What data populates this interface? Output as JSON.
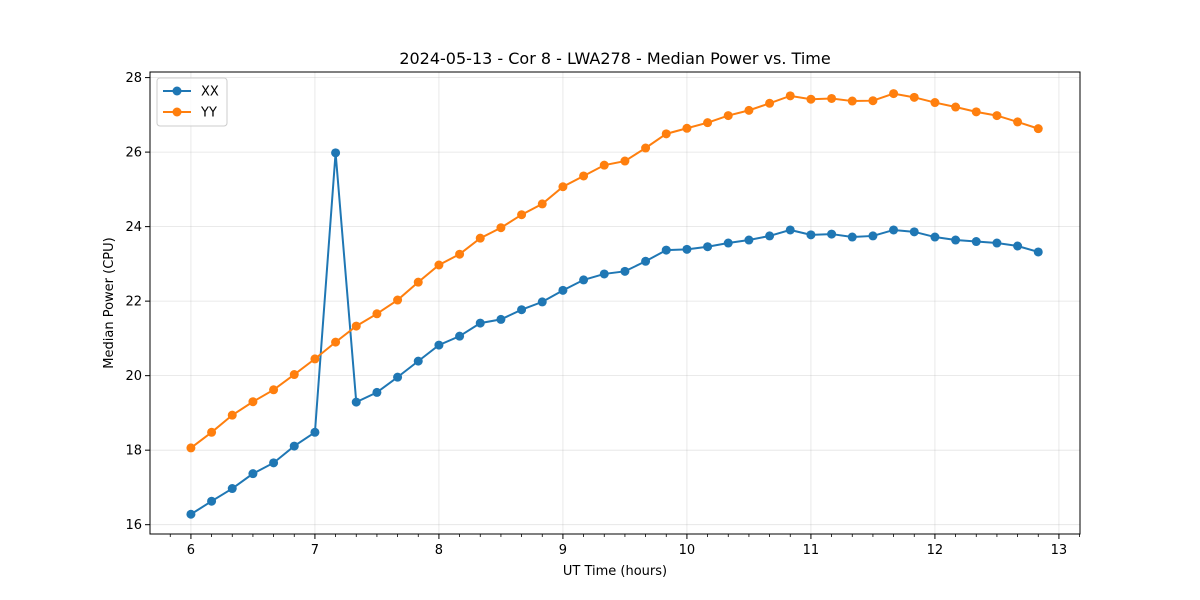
{
  "chart_data": {
    "type": "line",
    "title": "2024-05-13 - Cor 8 - LWA278 - Median Power vs. Time",
    "xlabel": "UT Time (hours)",
    "ylabel": "Median Power (CPU)",
    "xlim": [
      5.67,
      13.17
    ],
    "ylim": [
      15.75,
      28.15
    ],
    "xticks": [
      6,
      7,
      8,
      9,
      10,
      11,
      12,
      13
    ],
    "yticks": [
      16,
      18,
      20,
      22,
      24,
      26,
      28
    ],
    "grid": true,
    "legend_position": "upper-left",
    "x": [
      6.0,
      6.1667,
      6.3333,
      6.5,
      6.6667,
      6.8333,
      7.0,
      7.1667,
      7.3333,
      7.5,
      7.6667,
      7.8333,
      8.0,
      8.1667,
      8.3333,
      8.5,
      8.6667,
      8.8333,
      9.0,
      9.1667,
      9.3333,
      9.5,
      9.6667,
      9.8333,
      10.0,
      10.1667,
      10.3333,
      10.5,
      10.6667,
      10.8333,
      11.0,
      11.1667,
      11.3333,
      11.5,
      11.6667,
      11.8333,
      12.0,
      12.1667,
      12.3333,
      12.5,
      12.6667,
      12.8333
    ],
    "series": [
      {
        "name": "XX",
        "color": "#1f77b4",
        "values": [
          16.28,
          16.63,
          16.97,
          17.37,
          17.66,
          18.11,
          18.48,
          25.98,
          19.29,
          19.55,
          19.96,
          20.39,
          20.82,
          21.06,
          21.41,
          21.51,
          21.77,
          21.98,
          22.29,
          22.57,
          22.73,
          22.8,
          23.07,
          23.37,
          23.39,
          23.46,
          23.56,
          23.64,
          23.75,
          23.91,
          23.78,
          23.8,
          23.72,
          23.75,
          23.91,
          23.86,
          23.72,
          23.64,
          23.6,
          23.56,
          23.48,
          23.32
        ]
      },
      {
        "name": "YY",
        "color": "#ff7f0e",
        "values": [
          18.06,
          18.48,
          18.94,
          19.3,
          19.62,
          20.03,
          20.45,
          20.9,
          21.33,
          21.66,
          22.03,
          22.51,
          22.97,
          23.26,
          23.69,
          23.97,
          24.32,
          24.61,
          25.07,
          25.36,
          25.65,
          25.76,
          26.11,
          26.49,
          26.64,
          26.79,
          26.98,
          27.12,
          27.31,
          27.51,
          27.42,
          27.44,
          27.37,
          27.38,
          27.57,
          27.47,
          27.33,
          27.21,
          27.08,
          26.98,
          26.81,
          26.63
        ]
      }
    ]
  }
}
